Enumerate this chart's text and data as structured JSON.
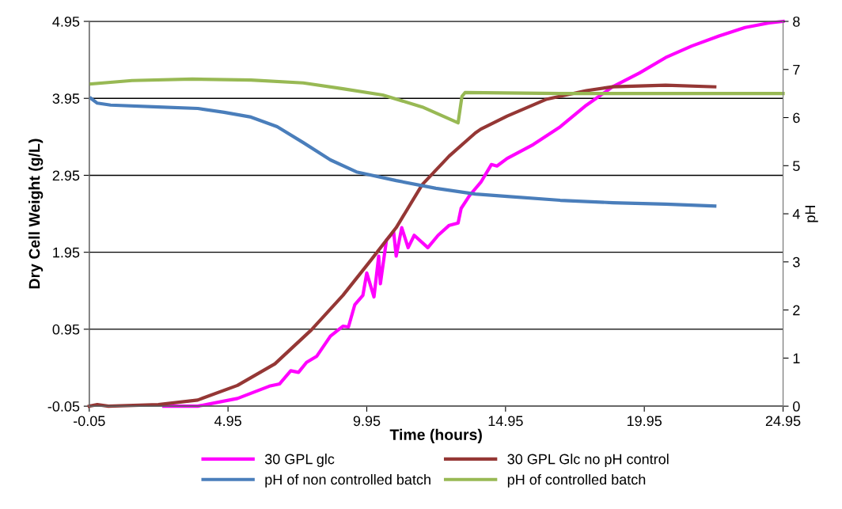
{
  "chart_data": {
    "type": "line",
    "xlabel": "Time (hours)",
    "ylabel": "Dry Cell Weight (g/L)",
    "y2label": "pH",
    "xlim": [
      -0.05,
      24.95
    ],
    "xticks": [
      -0.05,
      4.95,
      9.95,
      14.95,
      19.95,
      24.95
    ],
    "ylim": [
      -0.05,
      4.95
    ],
    "yticks": [
      -0.05,
      0.95,
      1.95,
      2.95,
      3.95,
      4.95
    ],
    "y2lim": [
      0,
      8
    ],
    "y2ticks": [
      0,
      1,
      2,
      3,
      4,
      5,
      6,
      7,
      8
    ],
    "grid": "y",
    "legend": "bottom",
    "marker": "none",
    "line_style": "solid",
    "series": [
      {
        "name": "30 GPL glc",
        "color": "#ff00ff",
        "x": [
          2.64,
          3.86,
          5.29,
          6.44,
          6.81,
          7.21,
          7.49,
          7.78,
          8.15,
          8.64,
          9.09,
          9.29,
          9.52,
          9.81,
          9.95,
          10.21,
          10.38,
          10.44,
          10.66,
          10.92,
          11.01,
          11.21,
          11.44,
          11.66,
          12.15,
          12.52,
          12.92,
          13.24,
          13.35,
          13.66,
          14.06,
          14.44,
          14.64,
          15.01,
          15.95,
          16.92,
          17.86,
          18.81,
          19.78,
          20.72,
          21.66,
          22.64,
          23.58,
          24.44,
          24.95
        ],
        "values": [
          -0.05,
          -0.05,
          0.05,
          0.21,
          0.24,
          0.41,
          0.39,
          0.52,
          0.6,
          0.86,
          0.99,
          0.98,
          1.27,
          1.39,
          1.68,
          1.37,
          1.9,
          1.54,
          2.11,
          2.21,
          1.9,
          2.27,
          2.01,
          2.17,
          2.01,
          2.17,
          2.3,
          2.33,
          2.52,
          2.69,
          2.86,
          3.09,
          3.07,
          3.17,
          3.35,
          3.58,
          3.86,
          4.1,
          4.28,
          4.48,
          4.63,
          4.76,
          4.87,
          4.93,
          4.95
        ]
      },
      {
        "name": "30 GPL Glc no pH control",
        "color": "#953735",
        "x": [
          -0.05,
          0.24,
          0.64,
          2.44,
          3.86,
          5.29,
          6.64,
          7.95,
          9.09,
          10.06,
          11.01,
          11.95,
          12.92,
          13.86,
          14.06,
          15.01,
          16.44,
          17.86,
          18.81,
          20.72,
          22.49
        ],
        "values": [
          -0.05,
          -0.03,
          -0.05,
          -0.03,
          0.03,
          0.22,
          0.5,
          0.94,
          1.39,
          1.83,
          2.27,
          2.83,
          3.2,
          3.5,
          3.55,
          3.72,
          3.94,
          4.05,
          4.1,
          4.12,
          4.1
        ]
      },
      {
        "name": "pH of non controlled batch",
        "color": "#4a7ebb",
        "axis": "y2",
        "x": [
          0.01,
          0.24,
          0.72,
          2.44,
          3.86,
          4.81,
          5.78,
          6.72,
          7.66,
          8.64,
          9.58,
          11.01,
          12.44,
          13.86,
          15.01,
          16.92,
          18.81,
          20.72,
          22.49
        ],
        "values": [
          6.4,
          6.3,
          6.26,
          6.22,
          6.19,
          6.11,
          6.01,
          5.81,
          5.48,
          5.12,
          4.87,
          4.69,
          4.53,
          4.41,
          4.36,
          4.28,
          4.23,
          4.2,
          4.16
        ]
      },
      {
        "name": "pH of controlled batch",
        "color": "#98b954",
        "axis": "y2",
        "x": [
          0.01,
          1.49,
          3.66,
          5.78,
          7.66,
          9.09,
          10.52,
          11.95,
          13.24,
          13.38,
          13.49,
          16.92,
          21.66,
          24.95
        ],
        "values": [
          6.7,
          6.77,
          6.8,
          6.78,
          6.72,
          6.6,
          6.47,
          6.22,
          5.89,
          6.44,
          6.52,
          6.5,
          6.5,
          6.5
        ]
      }
    ]
  }
}
